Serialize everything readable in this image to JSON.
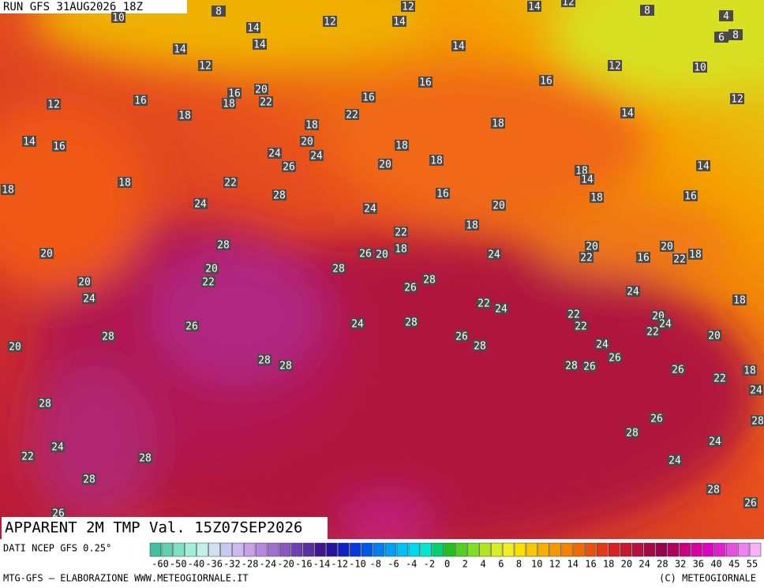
{
  "header": {
    "run": "RUN GFS 31AUG2026 18Z"
  },
  "map": {
    "title": "APPARENT 2M TMP Val. 15Z07SEP2026",
    "labels": [
      10,
      8,
      12,
      12,
      14,
      12,
      8,
      4,
      6,
      8,
      14,
      14,
      14,
      14,
      14,
      12,
      16,
      18,
      20,
      22,
      12,
      16,
      18,
      16,
      16,
      16,
      12,
      10,
      12,
      14,
      18,
      22,
      18,
      14,
      16,
      20,
      24,
      24,
      26,
      18,
      18,
      20,
      14,
      18,
      14,
      18,
      18,
      22,
      28,
      16,
      18,
      16,
      24,
      24,
      20,
      18,
      22,
      28,
      20,
      26,
      20,
      18,
      24,
      20,
      22,
      16,
      20,
      22,
      18,
      20,
      28,
      28,
      20,
      22,
      24,
      26,
      24,
      18,
      22,
      24,
      22,
      20,
      24,
      22,
      22,
      24,
      26,
      28,
      28,
      20,
      26,
      28,
      24,
      20,
      26,
      28,
      28,
      28,
      26,
      26,
      18,
      22,
      24,
      28,
      26,
      28,
      28,
      22,
      24,
      28,
      24,
      24,
      28,
      28,
      26,
      26
    ]
  },
  "footer": {
    "source": "DATI NCEP GFS 0.25°",
    "credit": "MTG-GFS — ELABORAZIONE WWW.METEOGIORNALE.IT",
    "copyright": "(C) METEOGIORNALE",
    "scale": [
      -60,
      -50,
      -40,
      -36,
      -32,
      -28,
      -24,
      -20,
      -16,
      -14,
      -12,
      -10,
      -8,
      -6,
      -4,
      -2,
      0,
      2,
      4,
      6,
      8,
      10,
      12,
      14,
      16,
      18,
      20,
      24,
      28,
      32,
      36,
      40,
      45,
      55
    ]
  }
}
